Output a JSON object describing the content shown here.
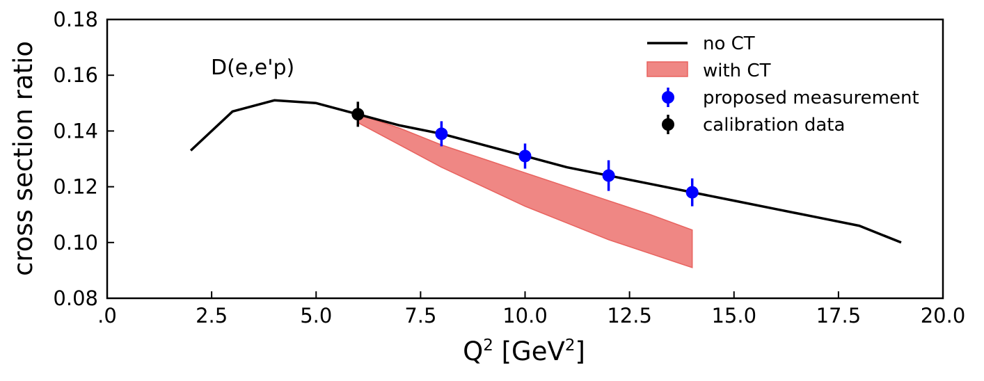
{
  "chart_data": {
    "type": "line",
    "title": "",
    "annotation": "D(e,e'p)",
    "xlabel": {
      "main": "Q",
      "sup": "2",
      "mid": " [GeV",
      "sup2": "2",
      "end": "]"
    },
    "ylabel": "cross section ratio",
    "xlim": [
      0.0,
      20.0
    ],
    "ylim": [
      0.08,
      0.18
    ],
    "x_ticks": [
      0.0,
      2.5,
      5.0,
      7.5,
      10.0,
      12.5,
      15.0,
      17.5,
      20.0
    ],
    "x_tick_labels": [
      ".0",
      "2.5",
      "5.0",
      "7.5",
      "10.0",
      "12.5",
      "15.0",
      "17.5",
      "20.0"
    ],
    "y_ticks": [
      0.08,
      0.1,
      0.12,
      0.14,
      0.16,
      0.18
    ],
    "y_tick_labels": [
      "0.08",
      "0.10",
      "0.12",
      "0.14",
      "0.16",
      "0.18"
    ],
    "grid": false,
    "legend_position": "top-right",
    "legend": [
      "no CT",
      "with CT",
      "proposed measurement",
      "calibration data"
    ],
    "series": [
      {
        "name": "no CT",
        "kind": "line",
        "color": "#000000",
        "x": [
          2,
          3,
          4,
          5,
          6,
          7,
          8,
          9,
          10,
          11,
          12,
          13,
          14,
          15,
          16,
          17,
          18,
          19
        ],
        "y": [
          0.133,
          0.147,
          0.151,
          0.15,
          0.146,
          0.142,
          0.139,
          0.135,
          0.131,
          0.127,
          0.124,
          0.121,
          0.118,
          0.115,
          0.112,
          0.109,
          0.106,
          0.1
        ]
      },
      {
        "name": "with CT",
        "kind": "band",
        "color": "#e8625e",
        "x": [
          6,
          7,
          8,
          9,
          10,
          11,
          12,
          13,
          14
        ],
        "upper": [
          0.146,
          0.141,
          0.135,
          0.13,
          0.125,
          0.12,
          0.115,
          0.11,
          0.1045
        ],
        "lower": [
          0.143,
          0.135,
          0.127,
          0.12,
          0.113,
          0.107,
          0.101,
          0.096,
          0.091
        ]
      },
      {
        "name": "proposed measurement",
        "kind": "errorbar",
        "color": "#0000ff",
        "x": [
          8,
          10,
          12,
          14
        ],
        "y": [
          0.139,
          0.131,
          0.124,
          0.118
        ],
        "err": [
          0.0045,
          0.0045,
          0.0055,
          0.005
        ]
      },
      {
        "name": "calibration data",
        "kind": "errorbar",
        "color": "#000000",
        "x": [
          6
        ],
        "y": [
          0.146
        ],
        "err": [
          0.0045
        ]
      }
    ]
  }
}
